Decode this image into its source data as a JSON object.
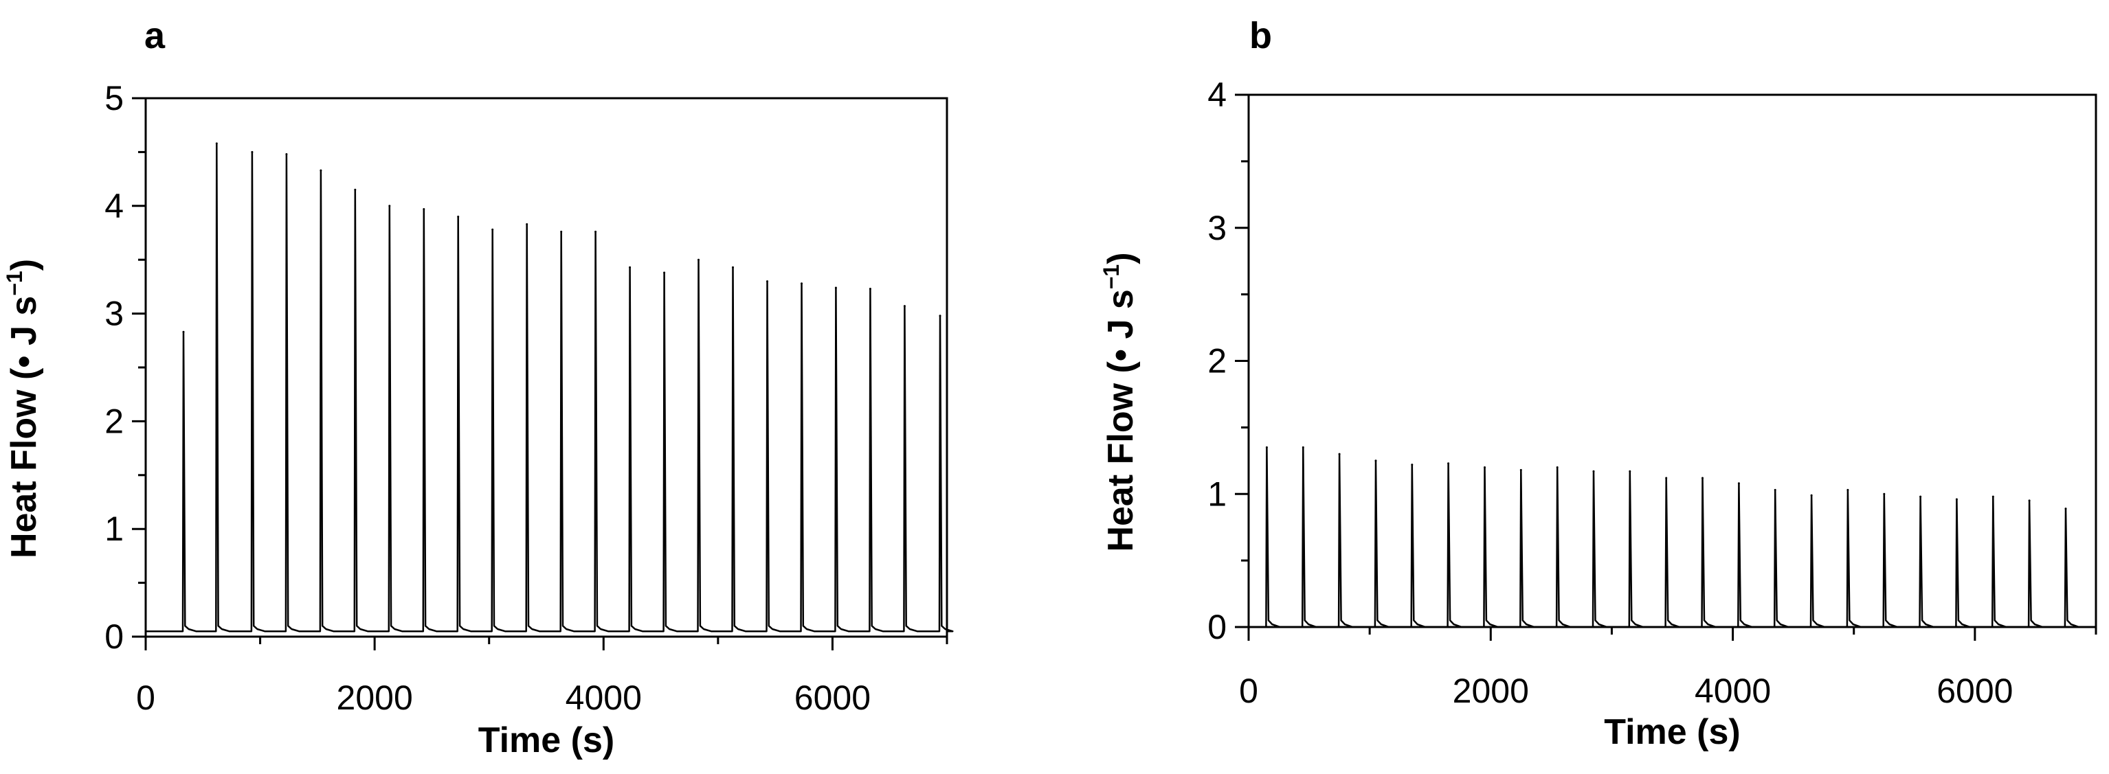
{
  "chart_data": [
    {
      "panel": "a",
      "type": "line",
      "title": "",
      "xlabel": "Time (s)",
      "ylabel": "Heat Flow (• J s",
      "ylabel_sup": "−1",
      "ylabel_close": ")",
      "xlim": [
        0,
        7000
      ],
      "ylim": [
        0,
        5
      ],
      "xticks": [
        0,
        2000,
        4000,
        6000
      ],
      "yticks": [
        0,
        1,
        2,
        3,
        4,
        5
      ],
      "grid": false,
      "baseline": 0.05,
      "peaks": {
        "x": [
          330,
          620,
          930,
          1230,
          1530,
          1830,
          2130,
          2430,
          2730,
          3030,
          3330,
          3630,
          3930,
          4230,
          4530,
          4830,
          5130,
          5430,
          5730,
          6030,
          6330,
          6630,
          6940
        ],
        "y": [
          2.83,
          4.58,
          4.5,
          4.48,
          4.33,
          4.15,
          4.0,
          3.97,
          3.9,
          3.78,
          3.83,
          3.76,
          3.76,
          3.43,
          3.38,
          3.5,
          3.43,
          3.3,
          3.28,
          3.24,
          3.23,
          3.07,
          2.98
        ]
      }
    },
    {
      "panel": "b",
      "type": "line",
      "title": "",
      "xlabel": "Time (s)",
      "ylabel": "Heat Flow (• J s",
      "ylabel_sup": "−1",
      "ylabel_close": ")",
      "xlim": [
        0,
        7000
      ],
      "ylim": [
        0,
        4
      ],
      "xticks": [
        0,
        2000,
        4000,
        6000
      ],
      "yticks": [
        0,
        1,
        2,
        3,
        4
      ],
      "grid": false,
      "baseline": 0.0,
      "peaks": {
        "x": [
          150,
          450,
          750,
          1050,
          1350,
          1650,
          1950,
          2250,
          2550,
          2850,
          3150,
          3450,
          3750,
          4050,
          4350,
          4650,
          4950,
          5250,
          5550,
          5850,
          6150,
          6450,
          6750
        ],
        "y": [
          1.35,
          1.35,
          1.3,
          1.25,
          1.22,
          1.23,
          1.2,
          1.18,
          1.2,
          1.17,
          1.17,
          1.12,
          1.12,
          1.08,
          1.03,
          0.99,
          1.03,
          1.0,
          0.98,
          0.96,
          0.98,
          0.95,
          0.89
        ]
      }
    }
  ]
}
